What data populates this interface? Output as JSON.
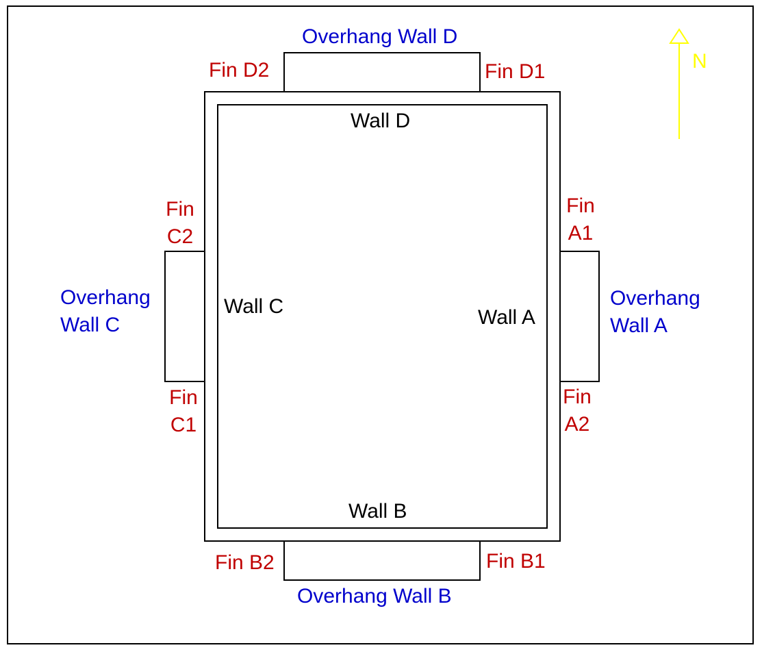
{
  "diagram": {
    "walls": {
      "a": "Wall A",
      "b": "Wall B",
      "c": "Wall C",
      "d": "Wall D"
    },
    "overhangs": {
      "a": [
        "Overhang",
        "Wall A"
      ],
      "b": "Overhang Wall B",
      "c": [
        "Overhang",
        "Wall C"
      ],
      "d": "Overhang Wall D"
    },
    "fins": {
      "a1": [
        "Fin",
        "A1"
      ],
      "a2": [
        "Fin",
        "A2"
      ],
      "b1": "Fin B1",
      "b2": "Fin B2",
      "c1": [
        "Fin",
        "C1"
      ],
      "c2": [
        "Fin",
        "C2"
      ],
      "d1": "Fin D1",
      "d2": "Fin D2"
    },
    "north": "N",
    "colors": {
      "wall_text": "#000000",
      "fin_text": "#c00000",
      "overhang_text": "#0000cc",
      "north_arrow": "#ffff00",
      "lines": "#000000"
    }
  }
}
